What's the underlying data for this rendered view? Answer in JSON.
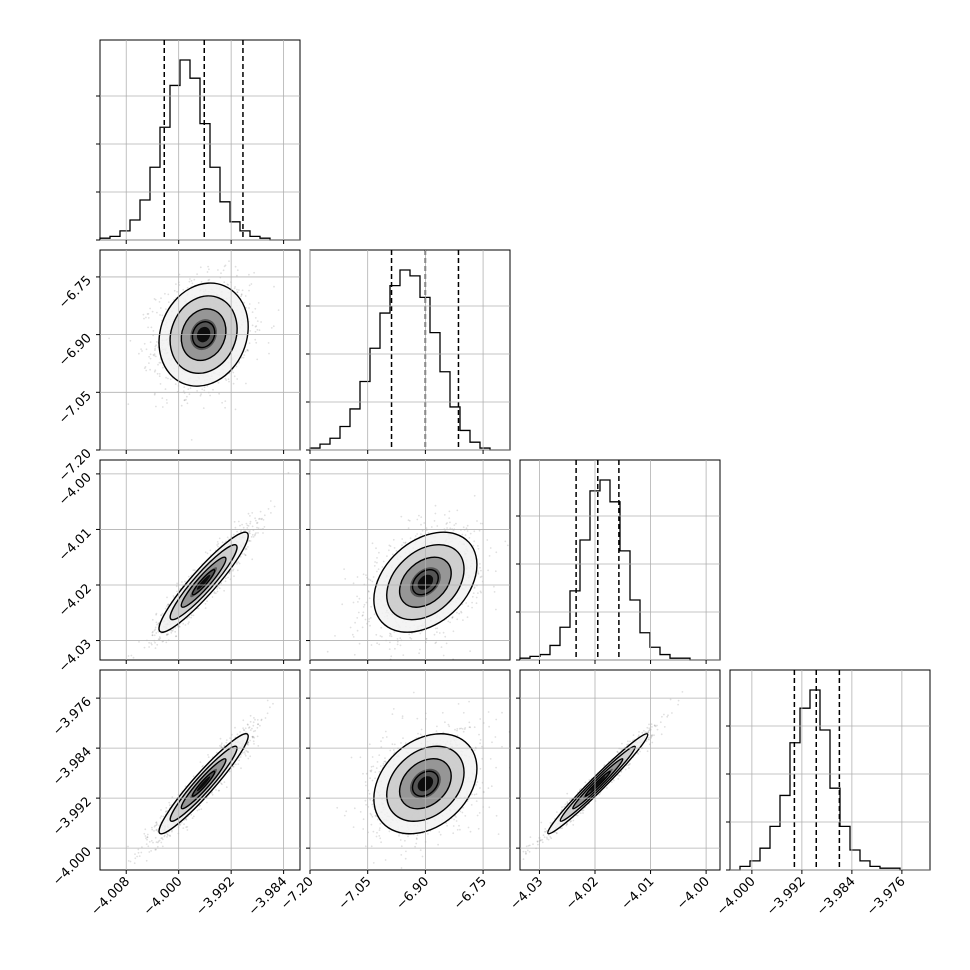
{
  "chart_data": {
    "type": "corner",
    "grid": true,
    "parameters": [
      {
        "ticks": [
          -4.008,
          -4.0,
          -3.992,
          -3.984
        ],
        "tick_labels": [
          "−4.008",
          "−4.000",
          "−3.992",
          "−3.984"
        ],
        "range": [
          -4.012,
          -3.9815
        ],
        "quantiles": [
          -4.0022,
          -3.9961,
          -3.9902
        ]
      },
      {
        "ticks": [
          -7.2,
          -7.05,
          -6.9,
          -6.75
        ],
        "tick_labels": [
          "−7.20",
          "−7.05",
          "−6.90",
          "−6.75"
        ],
        "range": [
          -7.2,
          -6.68
        ],
        "quantiles": [
          -6.988,
          -6.9,
          -6.814
        ]
      },
      {
        "ticks": [
          -4.03,
          -4.02,
          -4.01,
          -4.0
        ],
        "tick_labels": [
          "−4.03",
          "−4.02",
          "−4.01",
          "−4.00"
        ],
        "range": [
          -4.0335,
          -3.9975
        ],
        "quantiles": [
          -4.0234,
          -4.0195,
          -4.0157
        ]
      },
      {
        "ticks": [
          -4.0,
          -3.992,
          -3.984,
          -3.976
        ],
        "tick_labels": [
          "−4.000",
          "−3.992",
          "−3.984",
          "−3.976"
        ],
        "range": [
          -4.0035,
          -3.9715
        ],
        "quantiles": [
          -3.9932,
          -3.9897,
          -3.986
        ]
      }
    ],
    "histograms": [
      {
        "counts": [
          1,
          2,
          5,
          11,
          22,
          40,
          62,
          85,
          99,
          89,
          64,
          40,
          21,
          10,
          5,
          2,
          1,
          0,
          0,
          0
        ]
      },
      {
        "counts": [
          1,
          3,
          6,
          12,
          21,
          35,
          52,
          70,
          84,
          92,
          89,
          78,
          60,
          40,
          22,
          10,
          4,
          1,
          0,
          0
        ]
      },
      {
        "counts": [
          1,
          2,
          3,
          8,
          18,
          38,
          66,
          93,
          99,
          87,
          60,
          33,
          15,
          7,
          3,
          1,
          1,
          0,
          0,
          0
        ]
      },
      {
        "counts": [
          0,
          2,
          5,
          12,
          24,
          41,
          70,
          89,
          99,
          77,
          45,
          24,
          11,
          5,
          2,
          1,
          1,
          0,
          0,
          0
        ]
      }
    ],
    "pairs": [
      {
        "row": 1,
        "col": 0,
        "mean": [
          -3.9962,
          -6.9
        ],
        "sd": [
          0.0034,
          0.067
        ],
        "rho": 0.15
      },
      {
        "row": 2,
        "col": 0,
        "mean": [
          -3.9962,
          -4.0195
        ],
        "sd": [
          0.0034,
          0.0045
        ],
        "rho": 0.93
      },
      {
        "row": 2,
        "col": 1,
        "mean": [
          -6.9,
          -4.0195
        ],
        "sd": [
          0.067,
          0.0045
        ],
        "rho": 0.35
      },
      {
        "row": 3,
        "col": 0,
        "mean": [
          -3.9962,
          -3.9897
        ],
        "sd": [
          0.0034,
          0.004
        ],
        "rho": 0.95
      },
      {
        "row": 3,
        "col": 1,
        "mean": [
          -6.9,
          -3.9897
        ],
        "sd": [
          0.067,
          0.004
        ],
        "rho": 0.3
      },
      {
        "row": 3,
        "col": 2,
        "mean": [
          -4.0195,
          -3.9897
        ],
        "sd": [
          0.0045,
          0.004
        ],
        "rho": 0.98
      }
    ],
    "contour_levels_sigma": [
      0.5,
      1.0,
      1.5,
      2.0
    ]
  }
}
